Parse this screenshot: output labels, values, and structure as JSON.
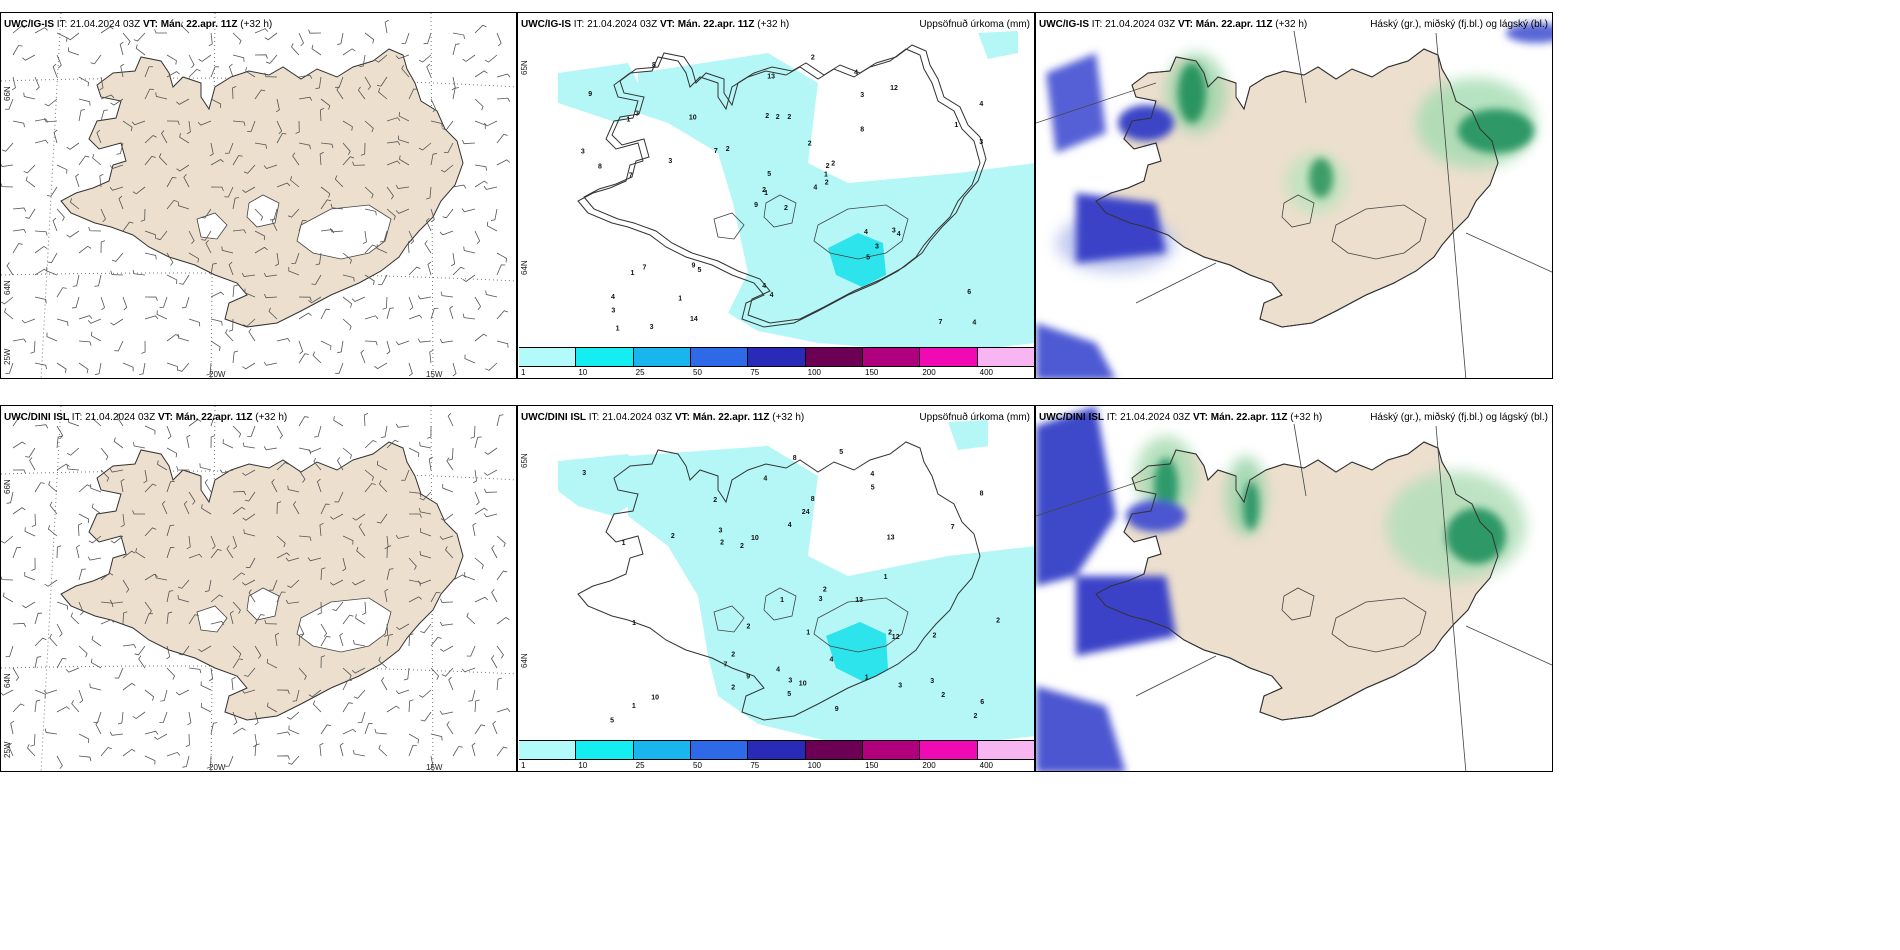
{
  "rows": [
    {
      "model": "UWC/IG-IS",
      "it": "IT: 21.04.2024 03Z",
      "vt_label": "VT:",
      "vt": "Mán. 22.apr. 11Z",
      "lead": "(+32 h)"
    },
    {
      "model": "UWC/DINI ISL",
      "it": "IT: 21.04.2024 03Z",
      "vt_label": "VT:",
      "vt": "Mán. 22.apr. 11Z",
      "lead": "(+32 h)"
    }
  ],
  "titles": {
    "precip": "Uppsöfnuð úrkoma (mm)",
    "clouds": "Háský (gr.), miðský (fj.bl.) og lágský (bl.)"
  },
  "axis_labels": {
    "lat66": "66N",
    "lat64": "64N",
    "lat65": "65N",
    "lon20": "20W",
    "lon15": "15W",
    "lon25": "25W"
  },
  "colorbar": {
    "ticks": [
      "1",
      "10",
      "25",
      "50",
      "75",
      "100",
      "150",
      "200",
      "400"
    ],
    "colors": [
      "#b3fbfb",
      "#14eef0",
      "#19b6ee",
      "#2e6ae8",
      "#2a2ab8",
      "#6b0054",
      "#b0007e",
      "#f00ab4",
      "#f7b6f2"
    ]
  },
  "colors": {
    "land": "#ecdfcd",
    "ocean": "#ffffff",
    "precip_light": "#b5f7f7",
    "precip_mid": "#2de3ec",
    "cloud_low": "#3a43c8",
    "cloud_mid": "#2aa06a",
    "cloud_high": "#c7e7c4"
  },
  "precip_labels_top": [
    "2",
    "1",
    "1",
    "4",
    "2",
    "5",
    "4",
    "2",
    "3",
    "4",
    "8",
    "4",
    "7",
    "4",
    "9",
    "8",
    "3",
    "2",
    "2",
    "7",
    "2",
    "3",
    "1",
    "2",
    "2",
    "4",
    "3",
    "13",
    "8",
    "4",
    "3",
    "2",
    "4",
    "5",
    "10",
    "12",
    "9",
    "7",
    "6",
    "3",
    "2",
    "7",
    "3",
    "5",
    "14",
    "3",
    "1",
    "1",
    "4",
    "2",
    "1",
    "1",
    "9",
    "3"
  ],
  "precip_labels_bot": [
    "1",
    "2",
    "2",
    "1",
    "4",
    "5",
    "3",
    "4",
    "3",
    "7",
    "2",
    "2",
    "9",
    "8",
    "1",
    "3",
    "2",
    "1",
    "1",
    "8",
    "3",
    "10",
    "5",
    "13",
    "12",
    "5",
    "10",
    "24",
    "7",
    "4",
    "2",
    "2",
    "8",
    "5",
    "3",
    "9",
    "3",
    "13",
    "1",
    "4",
    "2",
    "2",
    "2",
    "2",
    "1",
    "2",
    "4",
    "10",
    "2",
    "6"
  ]
}
